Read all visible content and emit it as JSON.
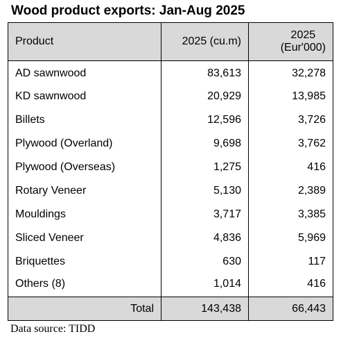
{
  "title": "Wood product exports: Jan-Aug 2025",
  "table": {
    "headers": {
      "product": "Product",
      "volume": "2025 (cu.m)",
      "value_year": "2025",
      "value_unit": "(Eur'000)"
    },
    "rows": [
      {
        "product": "AD sawnwood",
        "volume": "83,613",
        "value": "32,278"
      },
      {
        "product": "KD sawnwood",
        "volume": "20,929",
        "value": "13,985"
      },
      {
        "product": "Billets",
        "volume": "12,596",
        "value": "3,726"
      },
      {
        "product": "Plywood (Overland)",
        "volume": "9,698",
        "value": "3,762"
      },
      {
        "product": "Plywood (Overseas)",
        "volume": "1,275",
        "value": "416"
      },
      {
        "product": "Rotary Veneer",
        "volume": "5,130",
        "value": "2,389"
      },
      {
        "product": "Mouldings",
        "volume": "3,717",
        "value": "3,385"
      },
      {
        "product": "Sliced Veneer",
        "volume": "4,836",
        "value": "5,969"
      },
      {
        "product": "Briquettes",
        "volume": "630",
        "value": "117"
      },
      {
        "product": "Others (8)",
        "volume": "1,014",
        "value": "416"
      }
    ],
    "total": {
      "label": "Total",
      "volume": "143,438",
      "value": "66,443"
    },
    "colors": {
      "header_fill": "#d9d9d9",
      "border": "#000000"
    }
  },
  "source": "Data source: TIDD"
}
